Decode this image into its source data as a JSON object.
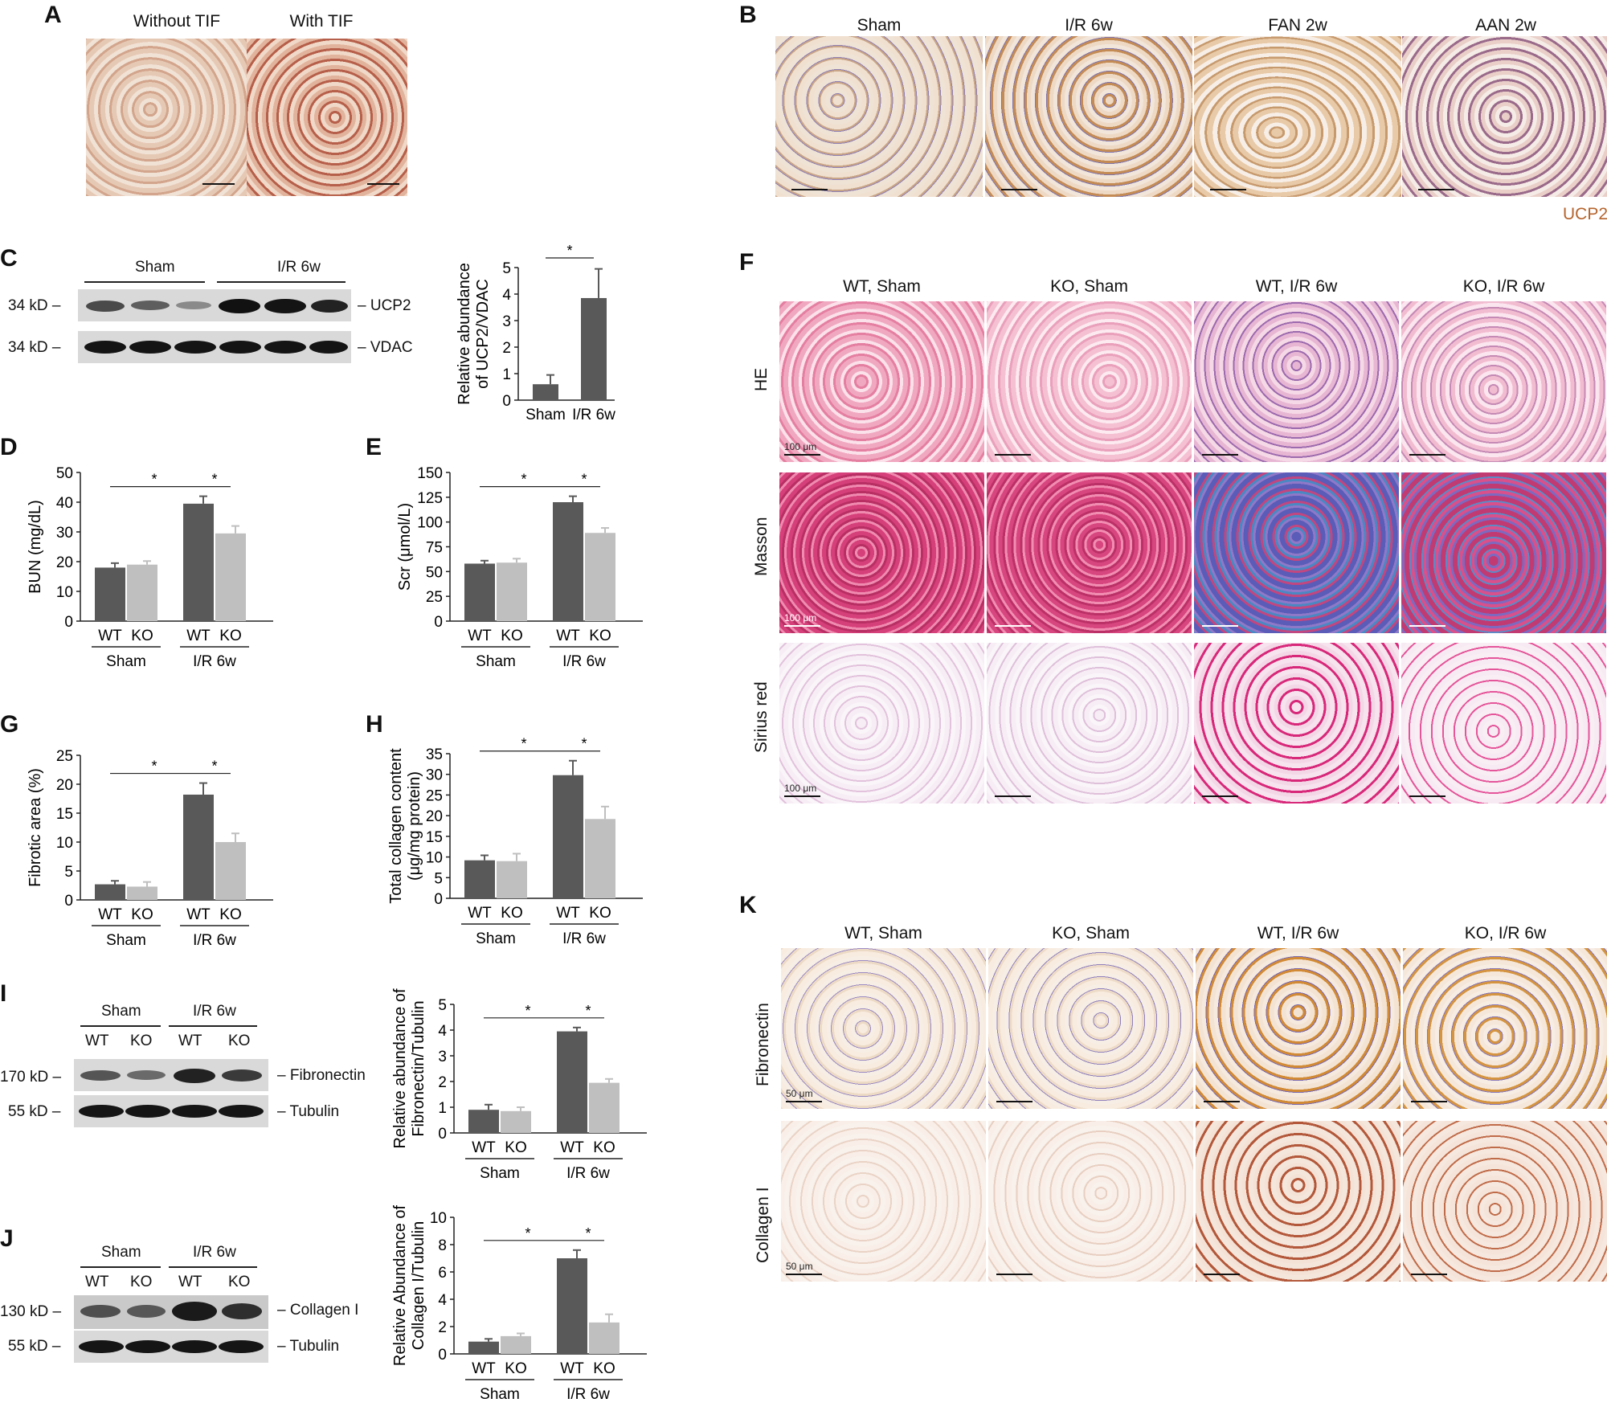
{
  "panelA": {
    "label": "A",
    "headers": [
      "Without TIF",
      "With TIF"
    ]
  },
  "panelB": {
    "label": "B",
    "headers": [
      "Sham",
      "I/R 6w",
      "FAN 2w",
      "AAN 2w"
    ],
    "stain_legend": "UCP2",
    "stain_color": "#b5642d"
  },
  "panelC": {
    "label": "C",
    "groups": [
      "Sham",
      "I/R 6w"
    ],
    "markers": [
      "34 kD –",
      "34 kD –"
    ],
    "proteins": [
      "– UCP2",
      "– VDAC"
    ]
  },
  "panelF": {
    "label": "F",
    "headers": [
      "WT, Sham",
      "KO, Sham",
      "WT, I/R 6w",
      "KO, I/R 6w"
    ],
    "rows": [
      "HE",
      "Masson",
      "Sirius red"
    ],
    "scale_bar": "100 μm"
  },
  "panelI": {
    "label": "I",
    "groups": [
      "Sham",
      "I/R 6w"
    ],
    "lanes": [
      "WT",
      "KO",
      "WT",
      "KO"
    ],
    "markers": [
      "170 kD –",
      "55 kD –"
    ],
    "proteins": [
      "– Fibronectin",
      "– Tubulin"
    ]
  },
  "panelJ": {
    "label": "J",
    "groups": [
      "Sham",
      "I/R 6w"
    ],
    "lanes": [
      "WT",
      "KO",
      "WT",
      "KO"
    ],
    "markers": [
      "130 kD –",
      "55 kD –"
    ],
    "proteins": [
      "– Collagen I",
      "– Tubulin"
    ]
  },
  "panelK": {
    "label": "K",
    "headers": [
      "WT, Sham",
      "KO, Sham",
      "WT, I/R 6w",
      "KO, I/R 6w"
    ],
    "rows": [
      "Fibronectin",
      "Collagen I"
    ],
    "scale_bar": "50 μm"
  },
  "colors": {
    "wt": "#595959",
    "ko": "#bfbfbf"
  },
  "chart_data": [
    {
      "id": "C",
      "type": "bar",
      "categories": [
        "Sham",
        "I/R 6w"
      ],
      "values": [
        0.6,
        3.85
      ],
      "errors": [
        0.35,
        1.1
      ],
      "ylabel": "Relative abundance\nof UCP2/VDAC",
      "ylim": [
        0,
        5
      ],
      "yticks": [
        0,
        1,
        2,
        3,
        4,
        5
      ],
      "sig": [
        "*"
      ]
    },
    {
      "id": "D",
      "type": "bar",
      "groups": [
        "Sham",
        "I/R 6w"
      ],
      "subcats": [
        "WT",
        "KO"
      ],
      "series": [
        {
          "values": [
            18,
            39.5
          ],
          "errors": [
            1.5,
            2.5
          ]
        },
        {
          "values": [
            19,
            29.5
          ],
          "errors": [
            1.2,
            2.5
          ]
        }
      ],
      "ylabel": "BUN (mg/dL)",
      "ylim": [
        0,
        50
      ],
      "yticks": [
        0,
        10,
        20,
        30,
        40,
        50
      ],
      "sig": [
        "*",
        "*"
      ]
    },
    {
      "id": "E",
      "type": "bar",
      "groups": [
        "Sham",
        "I/R 6w"
      ],
      "subcats": [
        "WT",
        "KO"
      ],
      "series": [
        {
          "values": [
            58,
            120
          ],
          "errors": [
            3,
            6
          ]
        },
        {
          "values": [
            59,
            89
          ],
          "errors": [
            4,
            5
          ]
        }
      ],
      "ylabel": "Scr (μmol/L)",
      "ylim": [
        0,
        150
      ],
      "yticks": [
        0,
        25,
        50,
        75,
        100,
        125,
        150
      ],
      "sig": [
        "*",
        "*"
      ]
    },
    {
      "id": "G",
      "type": "bar",
      "groups": [
        "Sham",
        "I/R 6w"
      ],
      "subcats": [
        "WT",
        "KO"
      ],
      "series": [
        {
          "values": [
            2.7,
            18.2
          ],
          "errors": [
            0.6,
            2.0
          ]
        },
        {
          "values": [
            2.3,
            10.0
          ],
          "errors": [
            0.8,
            1.5
          ]
        }
      ],
      "ylabel": "Fibrotic area (%)",
      "ylim": [
        0,
        25
      ],
      "yticks": [
        0,
        5,
        10,
        15,
        20,
        25
      ],
      "sig": [
        "*",
        "*"
      ]
    },
    {
      "id": "H",
      "type": "bar",
      "groups": [
        "Sham",
        "I/R 6w"
      ],
      "subcats": [
        "WT",
        "KO"
      ],
      "series": [
        {
          "values": [
            9.2,
            29.8
          ],
          "errors": [
            1.2,
            3.5
          ]
        },
        {
          "values": [
            9.0,
            19.2
          ],
          "errors": [
            1.8,
            3.0
          ]
        }
      ],
      "ylabel": "Total collagen content\n(μg/mg protein)",
      "ylim": [
        0,
        35
      ],
      "yticks": [
        0,
        5,
        10,
        15,
        20,
        25,
        30,
        35
      ],
      "sig": [
        "*",
        "*"
      ]
    },
    {
      "id": "I",
      "type": "bar",
      "groups": [
        "Sham",
        "I/R 6w"
      ],
      "subcats": [
        "WT",
        "KO"
      ],
      "series": [
        {
          "values": [
            0.9,
            3.95
          ],
          "errors": [
            0.2,
            0.15
          ]
        },
        {
          "values": [
            0.85,
            1.95
          ],
          "errors": [
            0.15,
            0.15
          ]
        }
      ],
      "ylabel": "Relative abundance of\nFibronectin/Tubulin",
      "ylim": [
        0,
        5
      ],
      "yticks": [
        0,
        1,
        2,
        3,
        4,
        5
      ],
      "sig": [
        "*",
        "*"
      ]
    },
    {
      "id": "J",
      "type": "bar",
      "groups": [
        "Sham",
        "I/R 6w"
      ],
      "subcats": [
        "WT",
        "KO"
      ],
      "series": [
        {
          "values": [
            0.9,
            7.0
          ],
          "errors": [
            0.2,
            0.6
          ]
        },
        {
          "values": [
            1.3,
            2.3
          ],
          "errors": [
            0.2,
            0.6
          ]
        }
      ],
      "ylabel": "Relative Abundance of\nCollagen I/Tubulin",
      "ylim": [
        0,
        10
      ],
      "yticks": [
        0,
        2,
        4,
        6,
        8,
        10
      ],
      "sig": [
        "*",
        "*"
      ]
    }
  ]
}
